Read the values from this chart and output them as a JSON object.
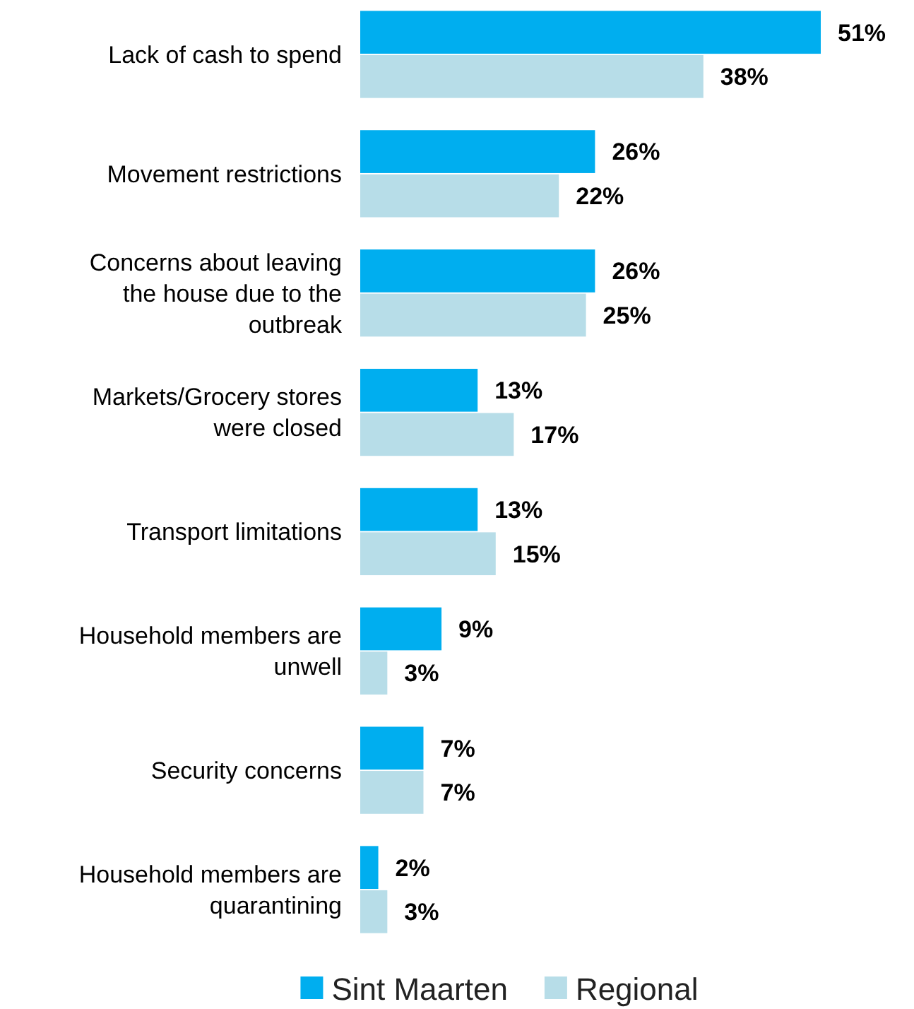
{
  "chart_data": {
    "type": "bar",
    "orientation": "horizontal",
    "categories": [
      "Lack of cash to spend",
      "Movement restrictions",
      "Concerns about leaving the house due to the outbreak",
      "Markets/Grocery stores were closed",
      "Transport limitations",
      "Household members are unwell",
      "Security concerns",
      "Household members are quarantining"
    ],
    "series": [
      {
        "name": "Sint Maarten",
        "color": "#00aeef",
        "values": [
          51,
          26,
          26,
          13,
          13,
          9,
          7,
          2
        ],
        "value_labels": [
          "51%",
          "26%",
          "26%",
          "13%",
          "13%",
          "9%",
          "7%",
          "2%"
        ]
      },
      {
        "name": "Regional",
        "color": "#b7dde8",
        "values": [
          38,
          22,
          25,
          17,
          15,
          3,
          7,
          3
        ],
        "value_labels": [
          "38%",
          "22%",
          "25%",
          "17%",
          "15%",
          "3%",
          "7%",
          "3%"
        ]
      }
    ],
    "legend": "bottom"
  }
}
